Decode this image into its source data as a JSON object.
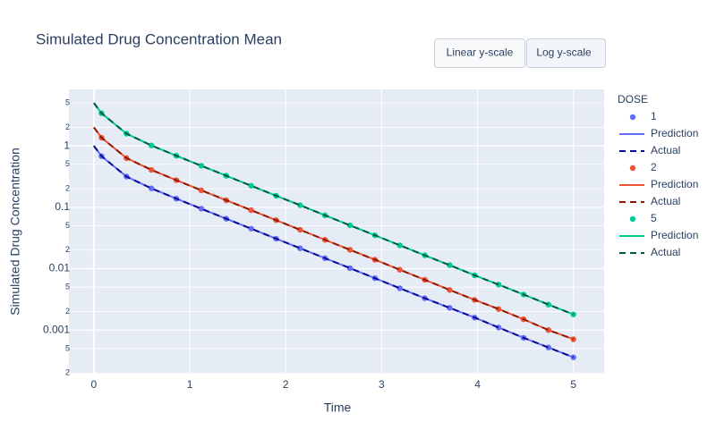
{
  "buttons": [
    "Linear y-scale",
    "Log y-scale"
  ],
  "chart_data": {
    "type": "line",
    "title": "Simulated Drug Concentration Mean",
    "x_label": "Time",
    "y_label": "Simulated Drug Concentration",
    "legend_title": "DOSE",
    "log_y": true,
    "grid": true,
    "xlim": [
      -0.26,
      5.32
    ],
    "xticks": [
      0,
      1,
      2,
      3,
      4,
      5
    ],
    "ylim": [
      0.000195,
      8.3
    ],
    "yticks": [
      {
        "value": 0.0002,
        "label": "2"
      },
      {
        "value": 0.0005,
        "label": "5"
      },
      0.001,
      {
        "value": 0.002,
        "label": "2"
      },
      {
        "value": 0.005,
        "label": "5"
      },
      0.01,
      {
        "value": 0.02,
        "label": "2"
      },
      {
        "value": 0.05,
        "label": "5"
      },
      0.1,
      {
        "value": 0.2,
        "label": "2"
      },
      {
        "value": 0.5,
        "label": "5"
      },
      1,
      {
        "value": 2,
        "label": "2"
      },
      {
        "value": 5,
        "label": "5"
      }
    ],
    "x": [
      0,
      0.08,
      0.34,
      0.6,
      0.86,
      1.12,
      1.38,
      1.64,
      1.9,
      2.15,
      2.41,
      2.67,
      2.93,
      3.19,
      3.45,
      3.71,
      3.97,
      4.22,
      4.48,
      4.74,
      5
    ],
    "series": [
      {
        "name": "1",
        "mode": "markers",
        "color": "#636efa",
        "values": [
          null,
          0.679,
          0.316,
          0.203,
          0.138,
          0.0947,
          0.0651,
          0.0448,
          0.0308,
          0.0215,
          0.0148,
          0.0102,
          0.007,
          0.0048,
          0.0033,
          0.0023,
          0.0016,
          0.0011,
          0.00075,
          0.00052,
          0.00036
        ]
      },
      {
        "name": "Prediction",
        "mode": "lines",
        "color": "#636efa",
        "values": [
          1,
          0.679,
          0.316,
          0.203,
          0.138,
          0.0947,
          0.0651,
          0.0448,
          0.0308,
          0.0215,
          0.0148,
          0.0102,
          0.007,
          0.0048,
          0.0033,
          0.0023,
          0.0016,
          0.0011,
          0.00075,
          0.00052,
          0.00036
        ]
      },
      {
        "name": "Actual",
        "mode": "lines",
        "dash": true,
        "color": "#0a0a8c",
        "values": [
          1,
          0.679,
          0.316,
          0.203,
          0.138,
          0.0947,
          0.0651,
          0.0448,
          0.0308,
          0.0215,
          0.0148,
          0.0102,
          0.007,
          0.0048,
          0.0033,
          0.0023,
          0.0016,
          0.0011,
          0.00075,
          0.00052,
          0.00036
        ]
      },
      {
        "name": "2",
        "mode": "markers",
        "color": "#ef553b",
        "values": [
          null,
          1.358,
          0.632,
          0.406,
          0.276,
          0.189,
          0.13,
          0.0896,
          0.0616,
          0.043,
          0.0295,
          0.0203,
          0.014,
          0.0096,
          0.0066,
          0.0045,
          0.0031,
          0.0022,
          0.0015,
          0.001,
          0.00071
        ]
      },
      {
        "name": "Prediction",
        "mode": "lines",
        "color": "#ef553b",
        "values": [
          2,
          1.358,
          0.632,
          0.406,
          0.276,
          0.189,
          0.13,
          0.0896,
          0.0616,
          0.043,
          0.0295,
          0.0203,
          0.014,
          0.0096,
          0.0066,
          0.0045,
          0.0031,
          0.0022,
          0.0015,
          0.001,
          0.00071
        ]
      },
      {
        "name": "Actual",
        "mode": "lines",
        "dash": true,
        "color": "#8b1a00",
        "values": [
          2,
          1.358,
          0.632,
          0.406,
          0.276,
          0.189,
          0.13,
          0.0896,
          0.0616,
          0.043,
          0.0295,
          0.0203,
          0.014,
          0.0096,
          0.0066,
          0.0045,
          0.0031,
          0.0022,
          0.0015,
          0.001,
          0.00071
        ]
      },
      {
        "name": "5",
        "mode": "markers",
        "color": "#00cc96",
        "values": [
          null,
          3.395,
          1.58,
          1.015,
          0.69,
          0.474,
          0.326,
          0.224,
          0.154,
          0.108,
          0.0739,
          0.0508,
          0.035,
          0.024,
          0.0165,
          0.0114,
          0.0078,
          0.0055,
          0.0038,
          0.0026,
          0.0018
        ]
      },
      {
        "name": "Prediction",
        "mode": "lines",
        "color": "#00cc96",
        "values": [
          5,
          3.395,
          1.58,
          1.015,
          0.69,
          0.474,
          0.326,
          0.224,
          0.154,
          0.108,
          0.0739,
          0.0508,
          0.035,
          0.024,
          0.0165,
          0.0114,
          0.0078,
          0.0055,
          0.0038,
          0.0026,
          0.0018
        ]
      },
      {
        "name": "Actual",
        "mode": "lines",
        "dash": true,
        "color": "#005a3c",
        "values": [
          5,
          3.395,
          1.58,
          1.015,
          0.69,
          0.474,
          0.326,
          0.224,
          0.154,
          0.108,
          0.0739,
          0.0508,
          0.035,
          0.024,
          0.0165,
          0.0114,
          0.0078,
          0.0055,
          0.0038,
          0.0026,
          0.0018
        ]
      }
    ]
  }
}
